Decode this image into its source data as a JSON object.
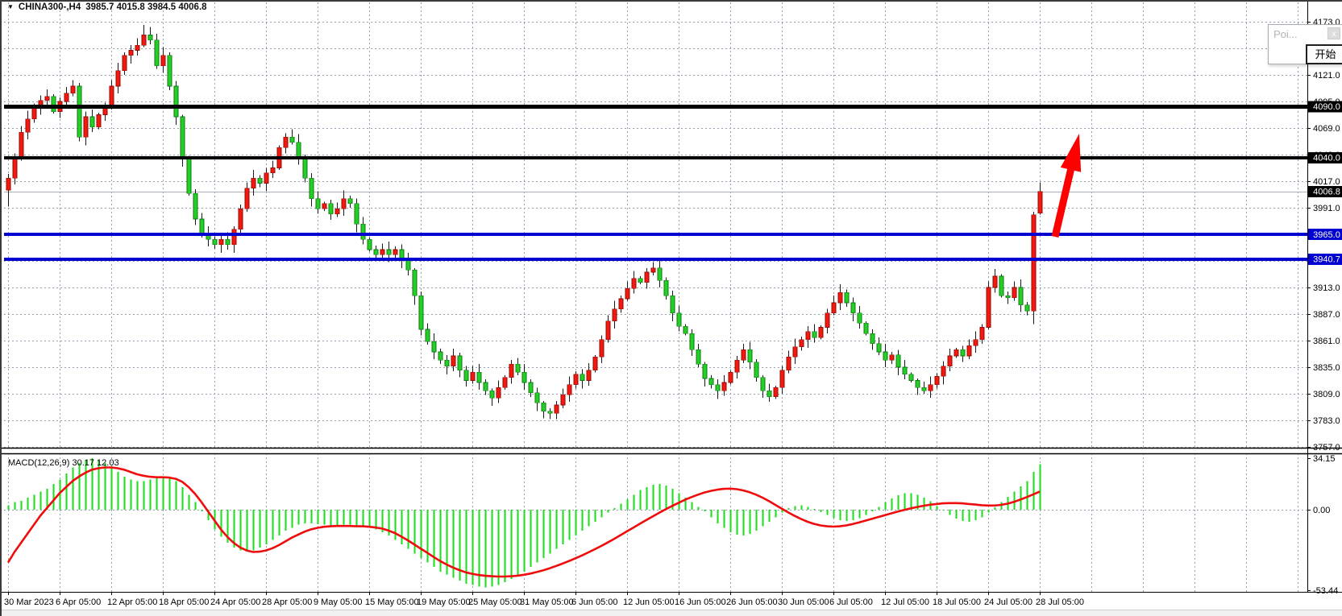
{
  "header": {
    "dropdown_icon": "▼",
    "symbol_period": "CHINA300-,H4",
    "ohlc_text": "3985.7 4015.8 3984.5 4006.8",
    "ohlc": {
      "open": "3985.7",
      "high": "4015.8",
      "low": "3984.5",
      "close": "4006.8"
    }
  },
  "popup": {
    "title": "Poi...",
    "close_label": "x",
    "start_label": "开始"
  },
  "price_axis": {
    "tick_labels": [
      "4173.0",
      "4147.0",
      "4121.0",
      "4095.0",
      "4069.0",
      "4043.0",
      "4017.0",
      "3991.0",
      "3965.0",
      "3939.0",
      "3913.0",
      "3887.0",
      "3861.0",
      "3835.0",
      "3809.0",
      "3783.0",
      "3757.0"
    ],
    "badges": [
      {
        "text": "4090.0",
        "price": 4090.0,
        "bg": "#000000",
        "fg": "#ffffff"
      },
      {
        "text": "4040.0",
        "price": 4040.0,
        "bg": "#000000",
        "fg": "#ffffff"
      },
      {
        "text": "4006.8",
        "price": 4006.8,
        "bg": "#000000",
        "fg": "#ffffff"
      },
      {
        "text": "3965.0",
        "price": 3965.0,
        "bg": "#0000d0",
        "fg": "#ffffff"
      },
      {
        "text": "3940.7",
        "price": 3940.7,
        "bg": "#0000d0",
        "fg": "#ffffff"
      }
    ]
  },
  "macd_axis": {
    "labels": [
      {
        "text": "34.15",
        "v": 34.15
      },
      {
        "text": "0.00",
        "v": 0
      },
      {
        "text": "-53.44",
        "v": -53.44
      }
    ]
  },
  "chart_data": {
    "type": "candlestick+macd",
    "title": "CHINA300-,H4 3985.7 4015.8 3984.5 4006.8",
    "x_labels": [
      "30 Mar 2023",
      "6 Apr 05:00",
      "12 Apr 05:00",
      "18 Apr 05:00",
      "24 Apr 05:00",
      "28 Apr 05:00",
      "9 May 05:00",
      "15 May 05:00",
      "19 May 05:00",
      "25 May 05:00",
      "31 May 05:00",
      "6 Jun 05:00",
      "12 Jun 05:00",
      "16 Jun 05:00",
      "26 Jun 05:00",
      "30 Jun 05:00",
      "6 Jul 05:00",
      "12 Jul 05:00",
      "18 Jul 05:00",
      "24 Jul 05:00",
      "28 Jul 05:00"
    ],
    "price_panel": {
      "ylim": [
        3757.0,
        4173.0
      ],
      "tick_step": 26,
      "grid": true,
      "closes": [
        4020,
        4040,
        4065,
        4078,
        4090,
        4096,
        4100,
        4085,
        4095,
        4103,
        4110,
        4060,
        4080,
        4070,
        4082,
        4090,
        4110,
        4125,
        4140,
        4145,
        4150,
        4160,
        4155,
        4130,
        4140,
        4110,
        4080,
        4040,
        4005,
        3980,
        3965,
        3960,
        3955,
        3960,
        3955,
        3970,
        3990,
        4010,
        4020,
        4015,
        4025,
        4030,
        4050,
        4060,
        4055,
        4040,
        4020,
        4000,
        3990,
        3995,
        3985,
        3990,
        4000,
        3995,
        3975,
        3960,
        3950,
        3945,
        3950,
        3945,
        3950,
        3940,
        3930,
        3905,
        3872,
        3860,
        3850,
        3842,
        3836,
        3846,
        3832,
        3822,
        3830,
        3820,
        3812,
        3805,
        3815,
        3825,
        3838,
        3830,
        3820,
        3810,
        3800,
        3792,
        3790,
        3798,
        3808,
        3818,
        3828,
        3822,
        3832,
        3845,
        3862,
        3880,
        3892,
        3902,
        3912,
        3922,
        3918,
        3928,
        3932,
        3920,
        3905,
        3888,
        3875,
        3868,
        3852,
        3838,
        3824,
        3818,
        3812,
        3820,
        3830,
        3842,
        3852,
        3840,
        3825,
        3812,
        3806,
        3815,
        3832,
        3845,
        3855,
        3862,
        3870,
        3864,
        3874,
        3888,
        3898,
        3908,
        3898,
        3888,
        3878,
        3868,
        3858,
        3850,
        3842,
        3847,
        3835,
        3828,
        3822,
        3815,
        3812,
        3818,
        3826,
        3836,
        3846,
        3852,
        3846,
        3856,
        3862,
        3874,
        3913,
        3924,
        3905,
        3903,
        3913,
        3896,
        3890,
        3984,
        4006.8
      ],
      "open_overrides": {
        "0": 4008,
        "159": 3890,
        "160": 3985.7
      },
      "hl_overrides": {
        "160": [
          4015.8,
          3984.5
        ]
      },
      "wick_overrides": {
        "0": [
          4,
          16
        ],
        "10": [
          6,
          3
        ],
        "21": [
          10,
          2
        ],
        "22": [
          8,
          4
        ],
        "27": [
          2,
          9
        ],
        "35": [
          3,
          8
        ],
        "44": [
          8,
          2
        ],
        "63": [
          2,
          9
        ],
        "70": [
          3,
          7
        ],
        "75": [
          2,
          8
        ],
        "83": [
          2,
          7
        ],
        "84": [
          3,
          6
        ],
        "96": [
          7,
          2
        ],
        "108": [
          2,
          8
        ],
        "117": [
          2,
          7
        ],
        "128": [
          7,
          2
        ],
        "141": [
          2,
          7
        ],
        "152": [
          6,
          2
        ],
        "159": [
          3,
          13
        ]
      },
      "hlines": [
        {
          "price": 4090.0,
          "color": "#000000",
          "width": 5,
          "label": "4090.0"
        },
        {
          "price": 4040.0,
          "color": "#000000",
          "width": 4,
          "label": "4040.0"
        },
        {
          "price": 3965.0,
          "color": "#0000d0",
          "width": 4,
          "label": "3965.0"
        },
        {
          "price": 3940.7,
          "color": "#0000d0",
          "width": 4,
          "label": "3940.7"
        }
      ],
      "bid_line": {
        "price": 4006.8,
        "color": "#a8b0ba",
        "label": "4006.8"
      }
    },
    "macd_panel": {
      "label": "MACD(12,26,9) 30.17 12.03",
      "params": "12,26,9",
      "main_value": 30.17,
      "signal_value": 12.03,
      "ylim": [
        -53.44,
        34.15
      ],
      "hist": [
        3,
        5,
        6,
        8,
        10,
        12,
        14,
        17,
        20,
        24,
        28,
        31,
        33,
        34.15,
        33,
        31,
        28,
        25,
        22,
        20,
        19,
        19,
        20,
        21,
        22,
        21,
        19,
        15,
        10,
        5,
        -1,
        -7,
        -13,
        -18,
        -22,
        -25,
        -27,
        -27.5,
        -27,
        -25,
        -23,
        -20,
        -17,
        -14,
        -12,
        -10,
        -9,
        -9,
        -9.5,
        -10,
        -11,
        -11,
        -10,
        -10,
        -10.5,
        -11,
        -12,
        -13,
        -15,
        -17,
        -20,
        -23,
        -26,
        -29,
        -32,
        -35,
        -38,
        -41,
        -43,
        -45,
        -47,
        -49,
        -50,
        -51,
        -51.5,
        -51,
        -50,
        -48,
        -46,
        -44,
        -41,
        -38,
        -35,
        -32,
        -29,
        -26,
        -23,
        -20,
        -17,
        -14,
        -11,
        -8,
        -5,
        -2,
        1,
        4,
        7,
        10,
        13,
        15,
        16.5,
        17,
        16,
        14,
        11,
        8,
        5,
        2,
        -1,
        -5,
        -9,
        -12,
        -15,
        -16.5,
        -17,
        -16,
        -14,
        -11,
        -8,
        -5,
        -2,
        1,
        2.5,
        3,
        2,
        0.5,
        -1.5,
        -3.5,
        -5.5,
        -7,
        -7.5,
        -7,
        -5.5,
        -3.5,
        -1,
        2,
        5,
        7.5,
        9.5,
        11,
        11,
        10,
        8,
        5.5,
        2.5,
        -0.5,
        -3.5,
        -6,
        -7.5,
        -8,
        -7,
        -5,
        -2,
        1.5,
        5,
        8.5,
        12,
        15.5,
        19,
        25,
        30.17
      ],
      "signal": [
        -35,
        -28,
        -22,
        -16,
        -10,
        -4,
        1,
        6,
        11,
        15,
        19,
        22,
        24.5,
        26.5,
        27.5,
        28,
        28,
        27.5,
        26.5,
        25,
        23.5,
        22.5,
        21.8,
        21.5,
        21.5,
        21.3,
        20.5,
        18.5,
        15,
        10.5,
        5,
        -1,
        -7,
        -13,
        -18,
        -22,
        -25,
        -27,
        -28,
        -27.8,
        -27,
        -25.5,
        -23.5,
        -21,
        -18.5,
        -16.5,
        -14.5,
        -13,
        -12,
        -11.3,
        -11,
        -10.8,
        -10.8,
        -10.8,
        -11,
        -11,
        -11.3,
        -11.8,
        -12.5,
        -13.8,
        -15.5,
        -17.8,
        -20.3,
        -23,
        -25.8,
        -28.5,
        -31.3,
        -34,
        -36.3,
        -38.3,
        -40,
        -41.5,
        -42.5,
        -43.3,
        -43.8,
        -44.1,
        -44.3,
        -44.3,
        -44.1,
        -43.7,
        -43.1,
        -42.3,
        -41.3,
        -40.1,
        -38.8,
        -37.3,
        -35.7,
        -34,
        -32.2,
        -30.3,
        -28.3,
        -26.2,
        -24,
        -21.7,
        -19.3,
        -16.8,
        -14.3,
        -11.8,
        -9.3,
        -6.8,
        -4.4,
        -2,
        0.3,
        2.5,
        4.6,
        6.6,
        8.4,
        10,
        11.4,
        12.5,
        13.3,
        13.8,
        14,
        13.6,
        12.8,
        11.6,
        10,
        8,
        5.7,
        3.2,
        0.7,
        -1.8,
        -4.1,
        -6.2,
        -8,
        -9.4,
        -10.4,
        -11,
        -11.2,
        -11,
        -10.4,
        -9.5,
        -8.4,
        -7.2,
        -6,
        -4.8,
        -3.6,
        -2.4,
        -1.2,
        -0.1,
        0.9,
        1.8,
        2.6,
        3.3,
        3.8,
        4.2,
        4.4,
        4.4,
        4.2,
        3.8,
        3.4,
        3,
        2.8,
        2.8,
        3.2,
        4,
        5.2,
        6.7,
        8.4,
        10.2,
        12.03
      ]
    },
    "annotations": {
      "arrow": {
        "shape": "up-arrow",
        "color": "#fe0000",
        "tail": [
          1307,
          294
        ],
        "tip": [
          1337,
          166
        ]
      }
    }
  },
  "colors": {
    "bull": "#f51710",
    "bull_border": "#8d0d05",
    "bear": "#25cf25",
    "bear_border": "#0b7a12",
    "wick": "#1a1a1a",
    "macd_hist": "#17df17",
    "macd_signal": "#f00c0c",
    "grid": "#93a1b1",
    "axis": "#000000",
    "text": "#000000"
  }
}
